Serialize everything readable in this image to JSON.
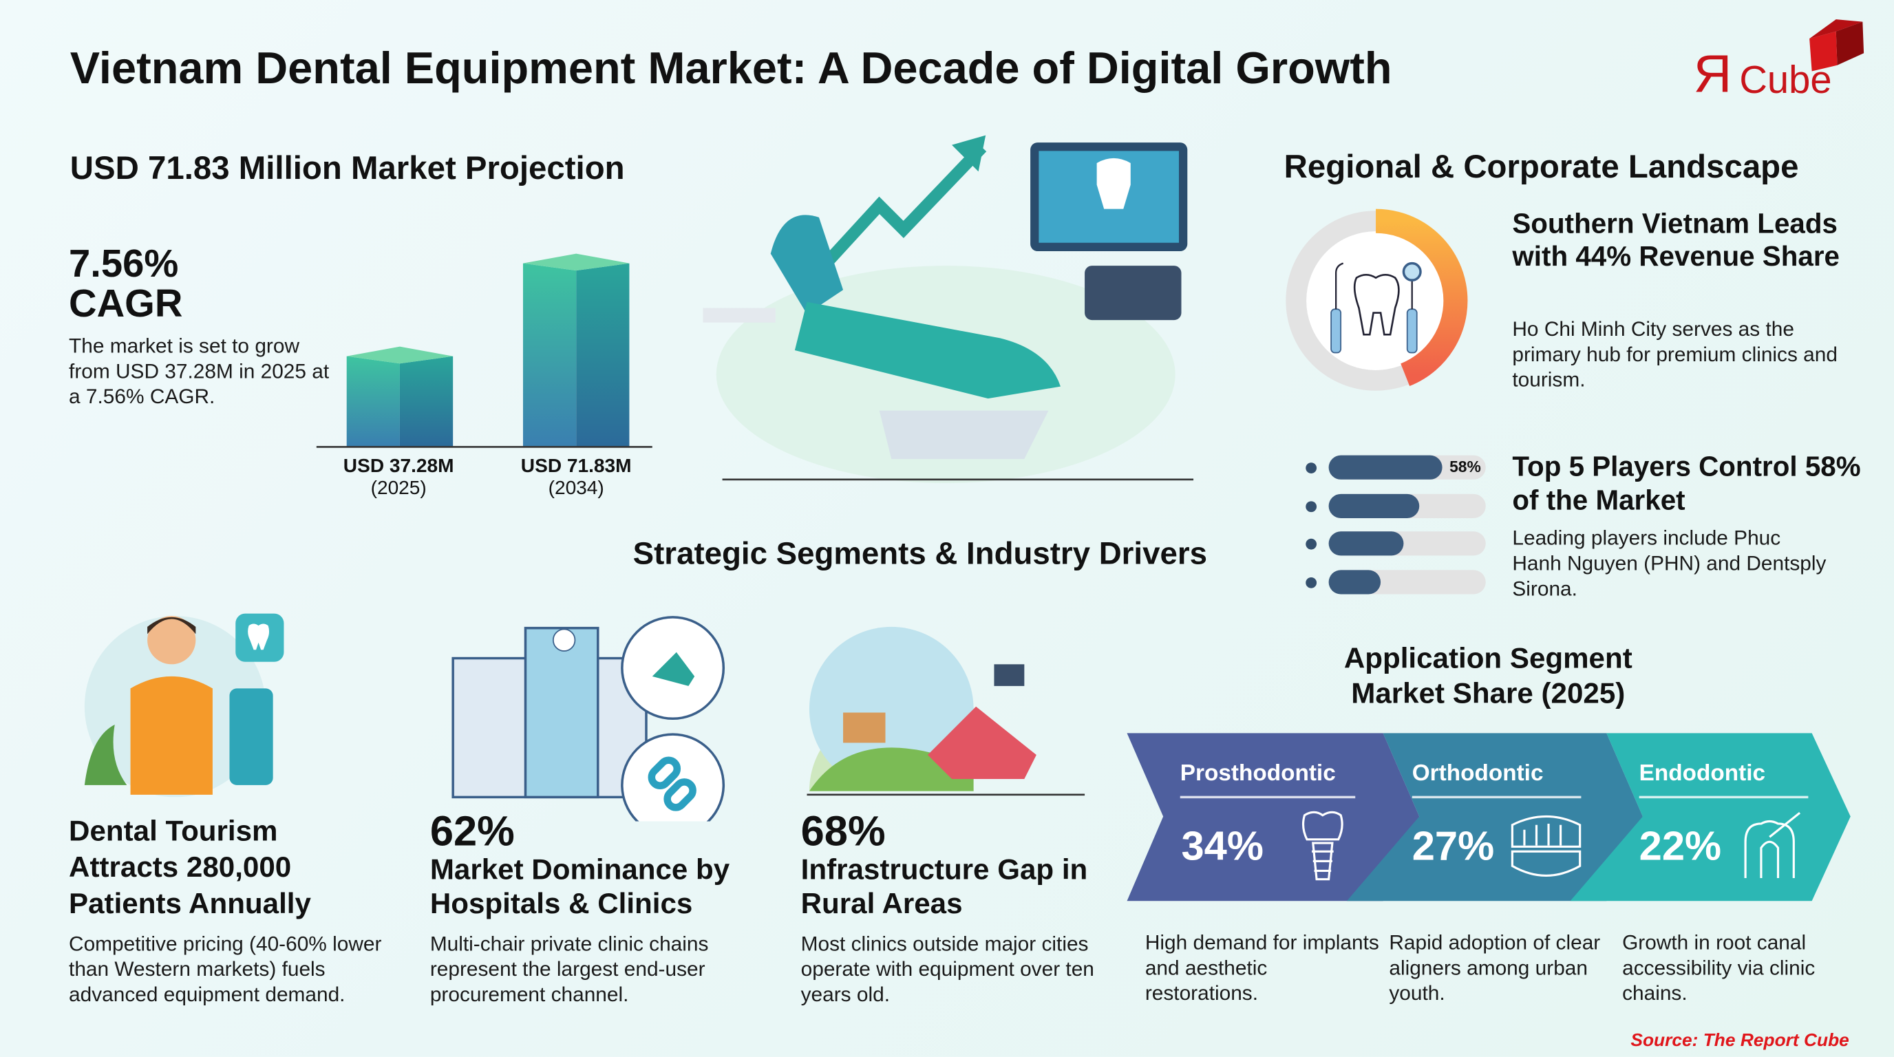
{
  "title": "Vietnam Dental Equipment Market: A Decade of Digital Growth",
  "logo": {
    "text": "ЯCube",
    "color": "#c8141a"
  },
  "projection": {
    "heading": "USD 71.83 Million Market Projection",
    "cagr_value": "7.56%",
    "cagr_label": "CAGR",
    "description": "The market is set to grow from USD 37.28M in 2025 at a 7.56% CAGR.",
    "bars": [
      {
        "value_label": "USD 37.28M",
        "year": "(2025)",
        "value": 37.28
      },
      {
        "value_label": "USD 71.83M",
        "year": "(2034)",
        "value": 71.83
      }
    ]
  },
  "regional": {
    "heading": "Regional & Corporate Landscape",
    "donut_share": 44,
    "south_title": "Southern Vietnam Leads with 44% Revenue Share",
    "south_text": "Ho Chi Minh City serves as the primary hub for premium clinics and tourism.",
    "players_bars": [
      {
        "fill": 0.72,
        "label": "58%"
      },
      {
        "fill": 0.58
      },
      {
        "fill": 0.48
      },
      {
        "fill": 0.33
      }
    ],
    "players_title": "Top 5 Players Control 58% of the Market",
    "players_text": "Leading players include Phuc Hanh Nguyen (PHN) and Dentsply Sirona."
  },
  "drivers": {
    "heading": "Strategic Segments & Industry Drivers",
    "items": [
      {
        "title": "Dental Tourism Attracts 280,000 Patients Annually",
        "text": "Competitive pricing (40-60% lower than Western markets) fuels advanced equipment demand."
      },
      {
        "stat": "62%",
        "title": "Market Dominance by Hospitals & Clinics",
        "text": "Multi-chair private clinic chains represent the largest end-user procurement channel."
      },
      {
        "stat": "68%",
        "title": "Infrastructure Gap in Rural Areas",
        "text": "Most clinics outside major cities operate with equipment over ten years old."
      }
    ]
  },
  "application": {
    "heading": "Application Segment Market Share (2025)",
    "segments": [
      {
        "name": "Prosthodontic",
        "share": "34%",
        "icon": "dental-implant-icon",
        "color": "#4e5f9e",
        "text": "High demand for implants and aesthetic restorations."
      },
      {
        "name": "Orthodontic",
        "share": "27%",
        "icon": "teeth-aligner-icon",
        "color": "#3784a4",
        "text": "Rapid adoption of clear aligners among urban youth."
      },
      {
        "name": "Endodontic",
        "share": "22%",
        "icon": "root-canal-icon",
        "color": "#2cb7b4",
        "text": "Growth in root canal accessibility via clinic chains."
      }
    ]
  },
  "source": "Source: The Report Cube"
}
